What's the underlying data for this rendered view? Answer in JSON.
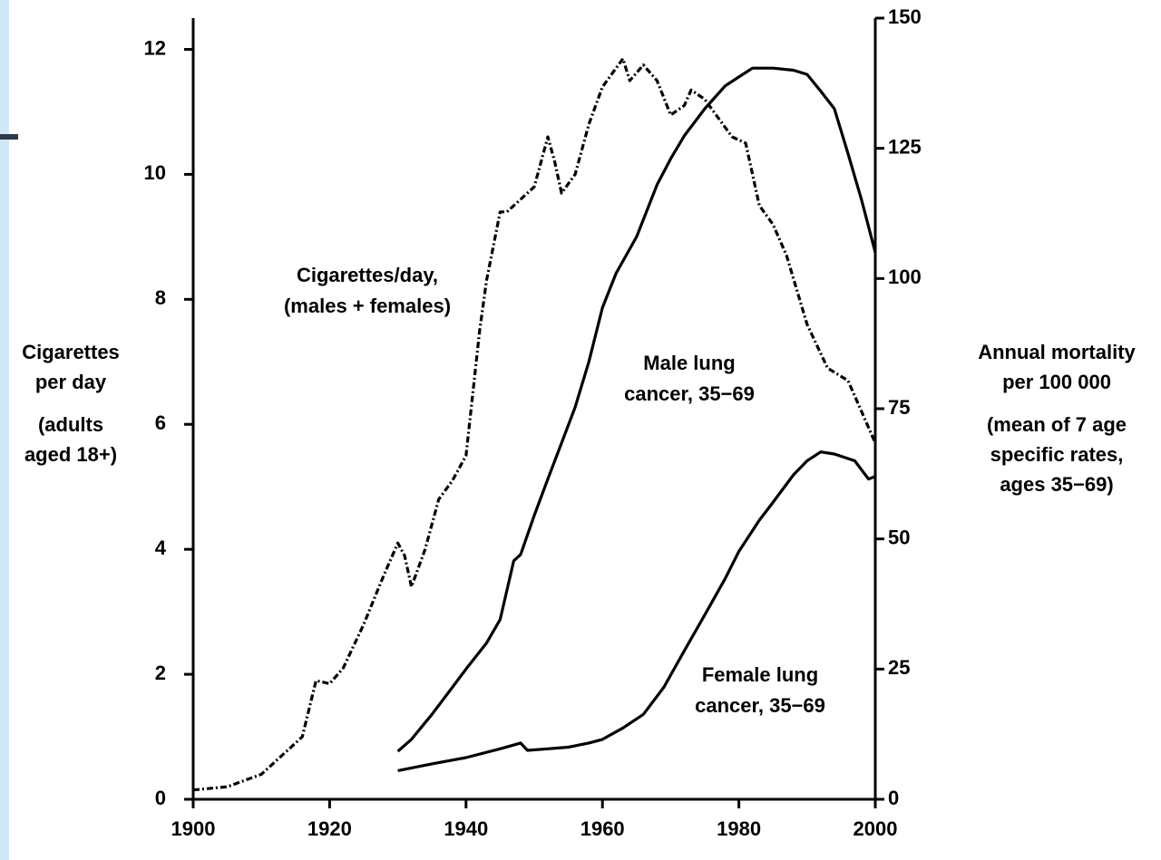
{
  "chart_data": {
    "type": "line",
    "xlim": [
      1900,
      2000
    ],
    "xticks": [
      1900,
      1920,
      1940,
      1960,
      1980,
      2000
    ],
    "ylim": [
      0,
      12.5
    ],
    "yticks": [
      0,
      2,
      4,
      6,
      8,
      10,
      12
    ],
    "y2lim": [
      0,
      150
    ],
    "y2ticks": [
      0,
      25,
      50,
      75,
      100,
      125,
      150
    ],
    "ylabel": [
      "Cigarettes",
      "per day"
    ],
    "ylabel_note": [
      "(adults",
      "aged 18+)"
    ],
    "y2label": [
      "Annual mortality",
      "per 100 000"
    ],
    "y2label_note": [
      "(mean of 7 age",
      "specific rates,",
      "ages 35−69)"
    ],
    "series": [
      {
        "label": [
          "Cigarettes/day,",
          "(males + females)"
        ],
        "color": "#000000",
        "style": "dashdot",
        "axis": "y",
        "x": [
          1900,
          1905,
          1910,
          1913,
          1916,
          1918,
          1920,
          1922,
          1925,
          1928,
          1930,
          1931,
          1932,
          1934,
          1936,
          1938,
          1940,
          1942,
          1943,
          1945,
          1946,
          1948,
          1950,
          1952,
          1953,
          1954,
          1956,
          1958,
          1960,
          1962,
          1963,
          1964,
          1966,
          1968,
          1970,
          1972,
          1973,
          1975,
          1977,
          1979,
          1981,
          1983,
          1985,
          1987,
          1990,
          1993,
          1996,
          1998,
          2000
        ],
        "values": [
          0.15,
          0.2,
          0.4,
          0.7,
          1.0,
          1.9,
          1.85,
          2.1,
          2.8,
          3.6,
          4.1,
          3.9,
          3.4,
          4.0,
          4.8,
          5.1,
          5.5,
          7.5,
          8.3,
          9.4,
          9.4,
          9.6,
          9.8,
          10.6,
          10.2,
          9.7,
          10.0,
          10.8,
          11.4,
          11.7,
          11.85,
          11.5,
          11.75,
          11.5,
          10.95,
          11.1,
          11.35,
          11.2,
          10.9,
          10.6,
          10.5,
          9.5,
          9.2,
          8.7,
          7.6,
          6.9,
          6.7,
          6.2,
          5.7
        ]
      },
      {
        "label": [
          "Male lung",
          "cancer, 35−69"
        ],
        "color": "#000000",
        "style": "solid",
        "axis": "y2",
        "x": [
          1930,
          1932,
          1935,
          1938,
          1940,
          1943,
          1945,
          1947,
          1948,
          1950,
          1952,
          1954,
          1956,
          1958,
          1960,
          1962,
          1965,
          1968,
          1970,
          1972,
          1975,
          1978,
          1980,
          1982,
          1985,
          1988,
          1990,
          1992,
          1994,
          1996,
          1998,
          2000
        ],
        "values": [
          9.2,
          11.5,
          16.3,
          21.5,
          25,
          30,
          34.5,
          45.8,
          47,
          54.5,
          61.5,
          68.4,
          75.3,
          84,
          94.4,
          101,
          108,
          118,
          123,
          127.4,
          132.6,
          137,
          138.7,
          140.4,
          140.4,
          140,
          139.2,
          136,
          132.6,
          124,
          115,
          105
        ]
      },
      {
        "label": [
          "Female lung",
          "cancer, 35−69"
        ],
        "color": "#000000",
        "style": "solid",
        "axis": "y2",
        "x": [
          1930,
          1935,
          1940,
          1945,
          1948,
          1949,
          1952,
          1955,
          1958,
          1960,
          1963,
          1966,
          1969,
          1972,
          1975,
          1978,
          1980,
          1983,
          1985,
          1988,
          1990,
          1992,
          1994,
          1997,
          1999,
          2000
        ],
        "values": [
          5.5,
          6.8,
          8,
          9.7,
          10.8,
          9.4,
          9.7,
          10,
          10.8,
          11.5,
          13.7,
          16.3,
          21.5,
          28.5,
          35.4,
          42.4,
          47.6,
          53.6,
          57,
          62.3,
          65,
          66.7,
          66.3,
          65,
          61.5,
          62
        ]
      }
    ]
  }
}
